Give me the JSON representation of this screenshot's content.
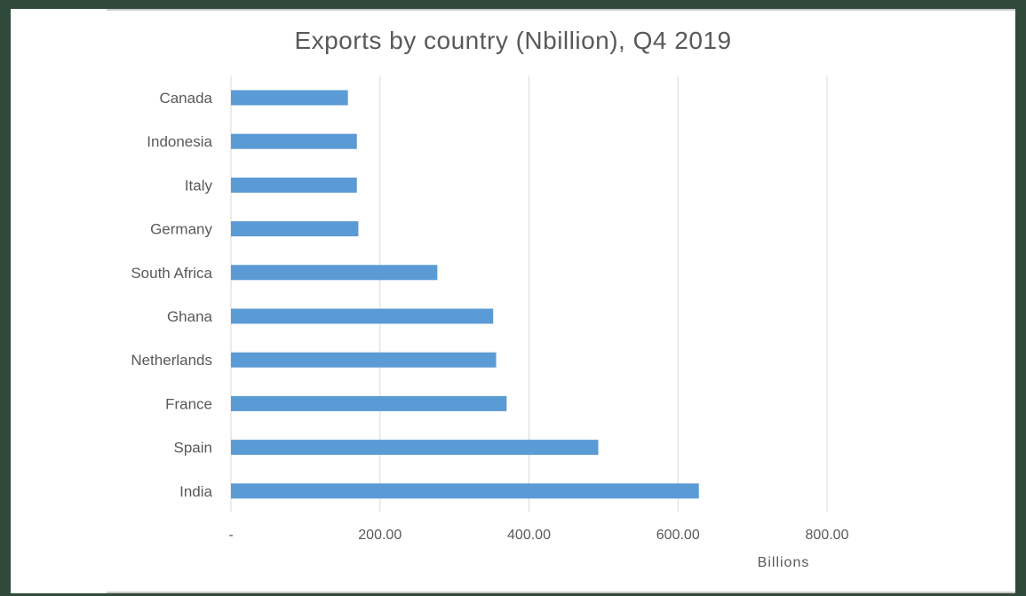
{
  "chart_data": {
    "type": "bar",
    "orientation": "horizontal",
    "title": "Exports by country (Nbillion), Q4 2019",
    "xlabel": "Billions",
    "ylabel": "",
    "categories": [
      "India",
      "Spain",
      "France",
      "Netherlands",
      "Ghana",
      "South Africa",
      "Germany",
      "Italy",
      "Indonesia",
      "Canada"
    ],
    "values": [
      628,
      493,
      370,
      356,
      352,
      277,
      171,
      169,
      169,
      157
    ],
    "xlim": [
      0,
      800
    ],
    "xticks": [
      0,
      200,
      400,
      600,
      800
    ],
    "xtick_labels": [
      "-",
      "200.00",
      "400.00",
      "600.00",
      "800.00"
    ],
    "grid": "vertical",
    "legend": "none",
    "bar_color": "#5b9bd5",
    "grid_color": "#d9d9d9"
  }
}
